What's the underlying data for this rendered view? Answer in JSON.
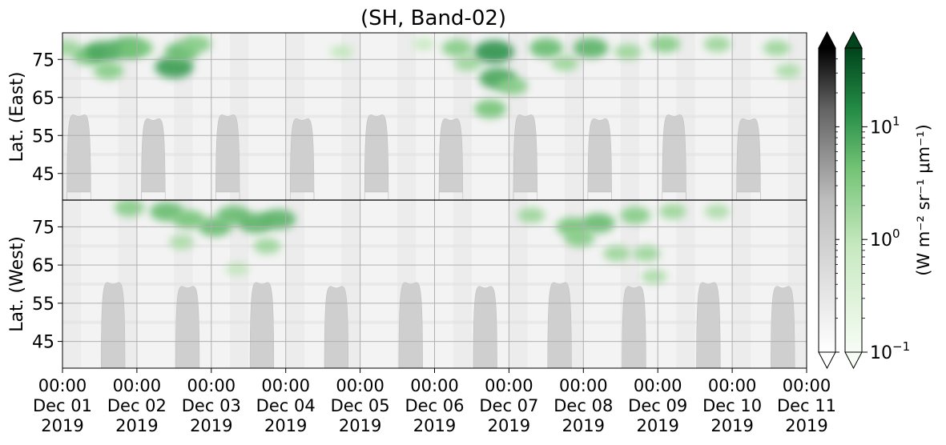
{
  "chart_data": {
    "type": "heatmap",
    "title": "(SH, Band-02)",
    "ylabel_top": "Lat. (East)",
    "ylabel_bottom": "Lat. (West)",
    "colorbar_label": "(W m⁻² sr⁻¹ μm⁻¹)",
    "colorbar_ticks": [
      {
        "base": "10",
        "exp": "1"
      },
      {
        "base": "10",
        "exp": "0"
      },
      {
        "base": "10",
        "exp": "−1"
      }
    ],
    "colorbar_range": [
      0.1,
      50
    ],
    "colorbar_scale": "log",
    "colorbar_extend": "both",
    "colormaps": {
      "background": "Greys",
      "aurora": "Greens",
      "grey_low": "#ffffff",
      "grey_high": "#000000",
      "green_low": "#f7fcf5",
      "green_high": "#00441b"
    },
    "x_range": [
      "2019-12-01 00:00",
      "2019-12-11 00:00"
    ],
    "x_ticks": [
      {
        "time": "00:00",
        "date": "Dec 01",
        "year": "2019"
      },
      {
        "time": "00:00",
        "date": "Dec 02",
        "year": "2019"
      },
      {
        "time": "00:00",
        "date": "Dec 03",
        "year": "2019"
      },
      {
        "time": "00:00",
        "date": "Dec 04",
        "year": "2019"
      },
      {
        "time": "00:00",
        "date": "Dec 05",
        "year": "2019"
      },
      {
        "time": "00:00",
        "date": "Dec 06",
        "year": "2019"
      },
      {
        "time": "00:00",
        "date": "Dec 07",
        "year": "2019"
      },
      {
        "time": "00:00",
        "date": "Dec 08",
        "year": "2019"
      },
      {
        "time": "00:00",
        "date": "Dec 09",
        "year": "2019"
      },
      {
        "time": "00:00",
        "date": "Dec 10",
        "year": "2019"
      },
      {
        "time": "00:00",
        "date": "Dec 11",
        "year": "2019"
      }
    ],
    "y_east": {
      "range": [
        38,
        82
      ],
      "ticks": [
        "45",
        "55",
        "65",
        "75"
      ],
      "tick_values": [
        45,
        55,
        65,
        75
      ]
    },
    "y_west": {
      "range": [
        82,
        38
      ],
      "ticks": [
        "75",
        "65",
        "55",
        "45"
      ],
      "tick_values": [
        75,
        65,
        55,
        45
      ]
    },
    "grid": true,
    "no_data_color": "#cfcfcf",
    "sunlit_gaps": {
      "east": [
        {
          "center_day": 0.22,
          "min_lat": 60
        },
        {
          "center_day": 1.22,
          "min_lat": 59
        },
        {
          "center_day": 2.22,
          "min_lat": 60
        },
        {
          "center_day": 3.22,
          "min_lat": 59
        },
        {
          "center_day": 4.22,
          "min_lat": 60
        },
        {
          "center_day": 5.22,
          "min_lat": 59
        },
        {
          "center_day": 6.22,
          "min_lat": 60
        },
        {
          "center_day": 7.22,
          "min_lat": 59
        },
        {
          "center_day": 8.22,
          "min_lat": 60
        },
        {
          "center_day": 9.22,
          "min_lat": 59
        }
      ],
      "west": [
        {
          "center_day": 0.68,
          "min_lat": 60
        },
        {
          "center_day": 1.68,
          "min_lat": 59
        },
        {
          "center_day": 2.68,
          "min_lat": 60
        },
        {
          "center_day": 3.68,
          "min_lat": 59
        },
        {
          "center_day": 4.68,
          "min_lat": 60
        },
        {
          "center_day": 5.68,
          "min_lat": 59
        },
        {
          "center_day": 6.68,
          "min_lat": 60
        },
        {
          "center_day": 7.68,
          "min_lat": 59
        },
        {
          "center_day": 8.68,
          "min_lat": 60
        },
        {
          "center_day": 9.68,
          "min_lat": 59
        }
      ]
    },
    "aurora_patches": [
      {
        "hemi": "east",
        "day": 0.05,
        "lat": 78,
        "value": 2
      },
      {
        "hemi": "east",
        "day": 0.35,
        "lat": 76,
        "value": 4
      },
      {
        "hemi": "east",
        "day": 0.55,
        "lat": 77,
        "value": 8
      },
      {
        "hemi": "east",
        "day": 0.62,
        "lat": 72,
        "value": 3
      },
      {
        "hemi": "east",
        "day": 0.85,
        "lat": 78,
        "value": 6
      },
      {
        "hemi": "east",
        "day": 1.0,
        "lat": 78,
        "value": 4
      },
      {
        "hemi": "east",
        "day": 1.5,
        "lat": 73,
        "value": 10
      },
      {
        "hemi": "east",
        "day": 1.6,
        "lat": 77,
        "value": 5
      },
      {
        "hemi": "east",
        "day": 1.8,
        "lat": 79,
        "value": 3
      },
      {
        "hemi": "east",
        "day": 3.75,
        "lat": 77,
        "value": 1
      },
      {
        "hemi": "east",
        "day": 4.85,
        "lat": 79,
        "value": 0.8
      },
      {
        "hemi": "east",
        "day": 5.3,
        "lat": 78,
        "value": 3
      },
      {
        "hemi": "east",
        "day": 5.45,
        "lat": 74,
        "value": 2
      },
      {
        "hemi": "east",
        "day": 5.75,
        "lat": 62,
        "value": 4
      },
      {
        "hemi": "east",
        "day": 5.85,
        "lat": 70,
        "value": 8
      },
      {
        "hemi": "east",
        "day": 5.8,
        "lat": 77,
        "value": 12
      },
      {
        "hemi": "east",
        "day": 6.05,
        "lat": 68,
        "value": 3
      },
      {
        "hemi": "east",
        "day": 6.5,
        "lat": 78,
        "value": 5
      },
      {
        "hemi": "east",
        "day": 6.75,
        "lat": 74,
        "value": 2
      },
      {
        "hemi": "east",
        "day": 7.1,
        "lat": 78,
        "value": 6
      },
      {
        "hemi": "east",
        "day": 7.6,
        "lat": 77,
        "value": 2
      },
      {
        "hemi": "east",
        "day": 8.1,
        "lat": 79,
        "value": 3
      },
      {
        "hemi": "east",
        "day": 8.8,
        "lat": 79,
        "value": 2
      },
      {
        "hemi": "east",
        "day": 9.6,
        "lat": 78,
        "value": 2
      },
      {
        "hemi": "east",
        "day": 9.75,
        "lat": 72,
        "value": 1.5
      },
      {
        "hemi": "west",
        "day": 0.9,
        "lat": 80,
        "value": 3
      },
      {
        "hemi": "west",
        "day": 1.4,
        "lat": 79,
        "value": 5
      },
      {
        "hemi": "west",
        "day": 1.7,
        "lat": 77,
        "value": 4
      },
      {
        "hemi": "west",
        "day": 2.05,
        "lat": 75,
        "value": 5
      },
      {
        "hemi": "west",
        "day": 2.3,
        "lat": 78,
        "value": 5
      },
      {
        "hemi": "west",
        "day": 2.6,
        "lat": 76,
        "value": 6
      },
      {
        "hemi": "west",
        "day": 2.9,
        "lat": 77,
        "value": 6
      },
      {
        "hemi": "west",
        "day": 2.75,
        "lat": 70,
        "value": 2
      },
      {
        "hemi": "west",
        "day": 2.35,
        "lat": 64,
        "value": 1
      },
      {
        "hemi": "west",
        "day": 1.6,
        "lat": 71,
        "value": 1.5
      },
      {
        "hemi": "west",
        "day": 6.3,
        "lat": 78,
        "value": 2
      },
      {
        "hemi": "west",
        "day": 6.85,
        "lat": 75,
        "value": 4
      },
      {
        "hemi": "west",
        "day": 6.95,
        "lat": 72,
        "value": 3
      },
      {
        "hemi": "west",
        "day": 7.2,
        "lat": 76,
        "value": 5
      },
      {
        "hemi": "west",
        "day": 7.45,
        "lat": 68,
        "value": 2
      },
      {
        "hemi": "west",
        "day": 7.7,
        "lat": 78,
        "value": 3
      },
      {
        "hemi": "west",
        "day": 7.85,
        "lat": 68,
        "value": 2
      },
      {
        "hemi": "west",
        "day": 7.95,
        "lat": 62,
        "value": 1.5
      },
      {
        "hemi": "west",
        "day": 8.2,
        "lat": 79,
        "value": 2
      },
      {
        "hemi": "west",
        "day": 8.8,
        "lat": 79,
        "value": 1.5
      }
    ]
  }
}
